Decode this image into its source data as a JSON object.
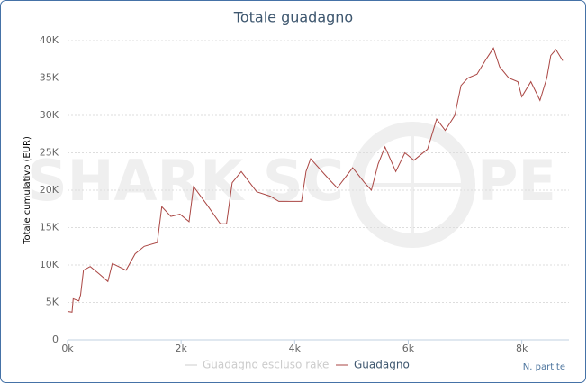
{
  "chart_data": {
    "type": "line",
    "title": "Totale guadagno",
    "watermark": [
      "SHARK SC",
      "PE"
    ],
    "x_label": "N. partite",
    "y_label": "Totale cumulativo (EUR)",
    "x": [
      0,
      80,
      100,
      200,
      230,
      280,
      400,
      560,
      710,
      790,
      1030,
      1190,
      1350,
      1580,
      1660,
      1820,
      1980,
      2140,
      2220,
      2460,
      2690,
      2800,
      2900,
      3060,
      3330,
      3570,
      3720,
      4120,
      4200,
      4280,
      4600,
      4750,
      5020,
      5230,
      5350,
      5470,
      5590,
      5780,
      5940,
      6100,
      6340,
      6500,
      6650,
      6820,
      6930,
      7050,
      7210,
      7370,
      7500,
      7610,
      7770,
      7930,
      8000,
      8160,
      8320,
      8440,
      8510,
      8600,
      8720
    ],
    "series": [
      {
        "name": "Guadagno escluso rake",
        "color": "#cccccc",
        "visible": false,
        "values": [
          null,
          null,
          null,
          null,
          null,
          null,
          null,
          null,
          null,
          null,
          null,
          null,
          null,
          null,
          null,
          null,
          null,
          null,
          null,
          null,
          null,
          null,
          null,
          null,
          null,
          null,
          null,
          null,
          null,
          null,
          null,
          null,
          null,
          null,
          null,
          null,
          null,
          null,
          null,
          null,
          null,
          null,
          null,
          null,
          null,
          null,
          null,
          null,
          null,
          null,
          null,
          null,
          null,
          null,
          null,
          null,
          null,
          null,
          null
        ]
      },
      {
        "name": "Guadagno",
        "color": "#aa4643",
        "visible": true,
        "values": [
          3800,
          3700,
          5500,
          5200,
          6000,
          9300,
          9800,
          8800,
          7800,
          10200,
          9300,
          11500,
          12500,
          13000,
          17800,
          16500,
          16800,
          15800,
          20500,
          18000,
          15500,
          15500,
          21000,
          22500,
          19800,
          19200,
          18500,
          18500,
          22500,
          24200,
          21500,
          20300,
          23000,
          21000,
          20000,
          23500,
          25800,
          22500,
          25000,
          24000,
          25500,
          29500,
          28000,
          30000,
          34000,
          35000,
          35500,
          37500,
          39000,
          36500,
          35000,
          34500,
          32500,
          34500,
          32000,
          35000,
          38000,
          38800,
          37300
        ]
      }
    ],
    "xlim": [
      0,
      8830
    ],
    "ylim": [
      0,
      40000
    ],
    "xticks": [
      {
        "value": 0,
        "label": "0k"
      },
      {
        "value": 2000,
        "label": "2k"
      },
      {
        "value": 4000,
        "label": "4k"
      },
      {
        "value": 6000,
        "label": "6k"
      },
      {
        "value": 8000,
        "label": "8k"
      }
    ],
    "yticks": [
      0,
      {
        "value": 5000,
        "label": "5K"
      },
      {
        "value": 10000,
        "label": "10K"
      },
      {
        "value": 15000,
        "label": "15K"
      },
      {
        "value": 20000,
        "label": "20K"
      },
      {
        "value": 25000,
        "label": "25K"
      },
      {
        "value": 30000,
        "label": "30K"
      },
      {
        "value": 35000,
        "label": "35K"
      },
      {
        "value": 40000,
        "label": "40K"
      }
    ],
    "grid": true
  }
}
